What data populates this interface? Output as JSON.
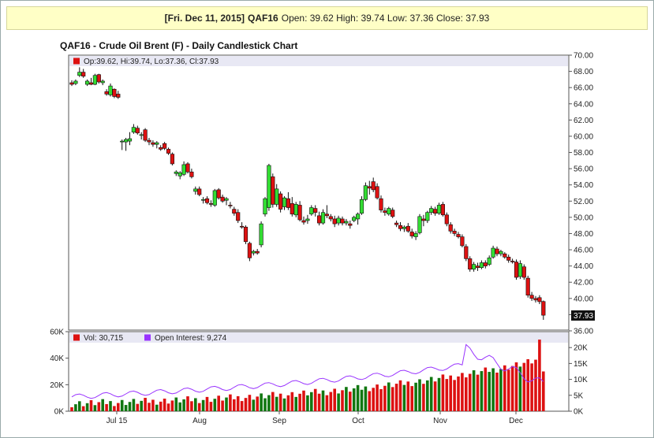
{
  "banner": {
    "date": "[Fri. Dec 11, 2015]",
    "symbol": "QAF16",
    "open": "Open: 39.62",
    "high": "High: 39.74",
    "low": "Low: 37.36",
    "close": "Close: 37.93"
  },
  "chart_data": [
    {
      "type": "candlestick",
      "title": "QAF16 - Crude Oil Brent (F) - Daily Candlestick Chart",
      "legend": "Op:39.62, Hi:39.74, Lo:37.36, Cl:37.93",
      "last_price_label": "37.93",
      "ylim": [
        36,
        70
      ],
      "y_ticks": [
        "70.00",
        "68.00",
        "66.00",
        "64.00",
        "62.00",
        "60.00",
        "58.00",
        "56.00",
        "54.00",
        "52.00",
        "50.00",
        "48.00",
        "46.00",
        "44.00",
        "42.00",
        "40.00",
        "38.00",
        "36.00"
      ],
      "x_ticks": [
        "Jul 15",
        "Aug",
        "Sep",
        "Oct",
        "Nov",
        "Dec"
      ],
      "colors": {
        "up": "#33dd33",
        "down": "#dd1111"
      },
      "candles": [
        [
          66.6,
          66.9,
          66.2,
          66.4
        ],
        [
          66.5,
          67.0,
          66.3,
          66.8
        ],
        [
          67.5,
          68.5,
          67.3,
          67.9
        ],
        [
          67.9,
          68.3,
          67.2,
          67.4
        ],
        [
          66.4,
          67.0,
          66.2,
          66.8
        ],
        [
          66.6,
          67.2,
          66.3,
          66.4
        ],
        [
          66.4,
          67.7,
          66.3,
          67.5
        ],
        [
          67.6,
          67.7,
          66.5,
          66.7
        ],
        [
          66.6,
          67.0,
          66.3,
          66.8
        ],
        [
          65.5,
          65.8,
          65.0,
          65.2
        ],
        [
          65.1,
          66.5,
          64.9,
          66.2
        ],
        [
          65.8,
          65.9,
          64.7,
          64.9
        ],
        [
          65.2,
          65.6,
          64.6,
          64.8
        ],
        [
          59.3,
          59.6,
          58.3,
          59.4
        ],
        [
          59.3,
          59.8,
          58.2,
          59.6
        ],
        [
          59.4,
          60.5,
          58.9,
          59.7
        ],
        [
          60.5,
          61.5,
          60.3,
          61.1
        ],
        [
          61.0,
          61.3,
          60.2,
          60.4
        ],
        [
          60.1,
          60.5,
          59.6,
          60.2
        ],
        [
          60.8,
          61.0,
          59.3,
          59.5
        ],
        [
          59.5,
          59.8,
          58.9,
          59.3
        ],
        [
          59.2,
          59.5,
          58.7,
          59.0
        ],
        [
          59.0,
          59.4,
          58.5,
          59.2
        ],
        [
          58.6,
          58.9,
          58.2,
          58.4
        ],
        [
          59.1,
          59.3,
          58.3,
          58.5
        ],
        [
          58.4,
          58.6,
          57.7,
          57.9
        ],
        [
          57.8,
          58.0,
          56.4,
          56.6
        ],
        [
          55.4,
          55.8,
          55.1,
          55.6
        ],
        [
          55.1,
          55.7,
          54.7,
          55.5
        ],
        [
          55.3,
          56.9,
          55.1,
          56.5
        ],
        [
          56.6,
          56.8,
          55.4,
          55.6
        ],
        [
          55.6,
          56.0,
          54.8,
          55.0
        ],
        [
          53.2,
          53.8,
          52.8,
          53.5
        ],
        [
          53.5,
          53.8,
          52.6,
          52.8
        ],
        [
          52.1,
          52.5,
          51.7,
          52.2
        ],
        [
          52.3,
          52.6,
          51.6,
          51.8
        ],
        [
          51.7,
          52.1,
          51.3,
          51.6
        ],
        [
          51.5,
          53.5,
          51.3,
          53.3
        ],
        [
          53.4,
          53.6,
          52.2,
          52.4
        ],
        [
          52.5,
          52.8,
          51.8,
          52.0
        ],
        [
          52.1,
          52.5,
          51.5,
          52.3
        ],
        [
          51.5,
          51.9,
          51.1,
          51.4
        ],
        [
          51.0,
          51.3,
          50.2,
          50.5
        ],
        [
          50.6,
          51.0,
          49.3,
          49.6
        ],
        [
          48.9,
          49.4,
          48.6,
          48.8
        ],
        [
          48.8,
          49.0,
          46.7,
          47.0
        ],
        [
          46.8,
          47.0,
          44.6,
          45.0
        ],
        [
          45.6,
          46.0,
          45.3,
          45.8
        ],
        [
          45.8,
          46.1,
          45.4,
          45.6
        ],
        [
          46.6,
          49.5,
          46.3,
          49.2
        ],
        [
          50.4,
          52.5,
          50.1,
          52.3
        ],
        [
          51.2,
          56.6,
          50.8,
          56.4
        ],
        [
          55.0,
          55.4,
          51.2,
          51.6
        ],
        [
          51.6,
          54.1,
          51.3,
          53.5
        ],
        [
          52.9,
          53.2,
          50.6,
          51.0
        ],
        [
          51.3,
          52.6,
          50.9,
          52.4
        ],
        [
          52.3,
          53.1,
          50.9,
          51.2
        ],
        [
          51.7,
          52.5,
          50.1,
          50.4
        ],
        [
          50.3,
          51.9,
          50.0,
          51.6
        ],
        [
          51.5,
          52.0,
          49.5,
          49.7
        ],
        [
          49.6,
          50.1,
          49.1,
          49.4
        ],
        [
          49.6,
          50.3,
          49.2,
          49.8
        ],
        [
          50.4,
          51.5,
          50.2,
          51.2
        ],
        [
          51.1,
          51.5,
          50.1,
          50.6
        ],
        [
          50.2,
          50.7,
          49.0,
          49.3
        ],
        [
          49.3,
          51.0,
          49.1,
          50.6
        ],
        [
          50.4,
          51.5,
          49.9,
          50.2
        ],
        [
          50.1,
          50.4,
          49.5,
          49.8
        ],
        [
          49.8,
          50.2,
          48.8,
          49.2
        ],
        [
          49.3,
          50.2,
          49.0,
          49.9
        ],
        [
          49.8,
          50.1,
          49.0,
          49.3
        ],
        [
          49.3,
          49.8,
          49.0,
          49.5
        ],
        [
          49.2,
          49.6,
          48.6,
          49.0
        ],
        [
          49.6,
          50.2,
          49.4,
          50.0
        ],
        [
          49.8,
          50.6,
          49.1,
          50.4
        ],
        [
          50.5,
          52.6,
          50.3,
          52.2
        ],
        [
          52.2,
          54.3,
          52.0,
          53.9
        ],
        [
          53.8,
          54.5,
          52.8,
          53.6
        ],
        [
          54.4,
          54.9,
          53.1,
          53.4
        ],
        [
          53.8,
          54.2,
          52.2,
          52.4
        ],
        [
          52.3,
          52.7,
          50.6,
          50.9
        ],
        [
          50.8,
          51.2,
          50.2,
          50.6
        ],
        [
          50.4,
          51.3,
          50.2,
          51.1
        ],
        [
          50.9,
          51.2,
          49.9,
          50.1
        ],
        [
          49.3,
          49.6,
          48.8,
          49.1
        ],
        [
          49.0,
          49.4,
          48.3,
          48.6
        ],
        [
          48.6,
          49.0,
          48.2,
          48.8
        ],
        [
          48.9,
          49.3,
          48.1,
          48.3
        ],
        [
          48.2,
          48.6,
          47.4,
          47.7
        ],
        [
          47.6,
          48.3,
          47.2,
          48.0
        ],
        [
          48.1,
          50.4,
          47.9,
          50.1
        ],
        [
          49.8,
          50.3,
          48.9,
          49.6
        ],
        [
          49.6,
          50.8,
          49.3,
          50.6
        ],
        [
          50.6,
          51.4,
          50.3,
          51.1
        ],
        [
          51.0,
          51.3,
          50.2,
          50.5
        ],
        [
          50.5,
          51.8,
          50.3,
          51.5
        ],
        [
          51.6,
          51.9,
          50.1,
          50.3
        ],
        [
          50.3,
          50.6,
          48.9,
          49.2
        ],
        [
          49.1,
          49.4,
          48.0,
          48.3
        ],
        [
          48.3,
          48.6,
          47.7,
          48.0
        ],
        [
          47.9,
          48.2,
          47.4,
          47.6
        ],
        [
          47.6,
          47.9,
          46.3,
          46.5
        ],
        [
          46.4,
          46.7,
          44.6,
          44.9
        ],
        [
          44.9,
          45.2,
          43.3,
          43.6
        ],
        [
          43.6,
          44.5,
          43.3,
          44.2
        ],
        [
          44.0,
          44.4,
          43.4,
          43.8
        ],
        [
          43.8,
          44.7,
          43.6,
          44.4
        ],
        [
          44.4,
          44.7,
          43.7,
          44.0
        ],
        [
          44.2,
          45.3,
          44.0,
          45.0
        ],
        [
          45.1,
          46.5,
          44.9,
          46.2
        ],
        [
          46.1,
          46.4,
          45.2,
          45.5
        ],
        [
          45.5,
          46.0,
          45.2,
          45.8
        ],
        [
          45.5,
          45.7,
          44.9,
          45.1
        ],
        [
          45.1,
          45.4,
          44.4,
          44.7
        ],
        [
          44.6,
          44.9,
          44.3,
          44.5
        ],
        [
          44.5,
          44.8,
          42.3,
          42.6
        ],
        [
          42.7,
          44.7,
          42.4,
          44.3
        ],
        [
          43.9,
          44.2,
          42.3,
          42.6
        ],
        [
          42.5,
          42.8,
          40.1,
          40.4
        ],
        [
          40.4,
          40.8,
          39.7,
          40.0
        ],
        [
          40.0,
          40.3,
          39.5,
          39.8
        ],
        [
          40.1,
          40.4,
          39.3,
          39.6
        ],
        [
          39.62,
          39.74,
          37.36,
          37.93
        ]
      ],
      "volume": {
        "legend": "Vol: 30,715",
        "open_interest_legend": "Open Interest: 9,274",
        "left_ticks": [
          "60K",
          "40K",
          "20K",
          "0K"
        ],
        "right_ticks": [
          "20K",
          "15K",
          "10K",
          "5K",
          "0K"
        ],
        "vol_colors": {
          "up": "#117711",
          "down": "#dd1111"
        },
        "oi_color": "#9933ff"
      }
    }
  ]
}
